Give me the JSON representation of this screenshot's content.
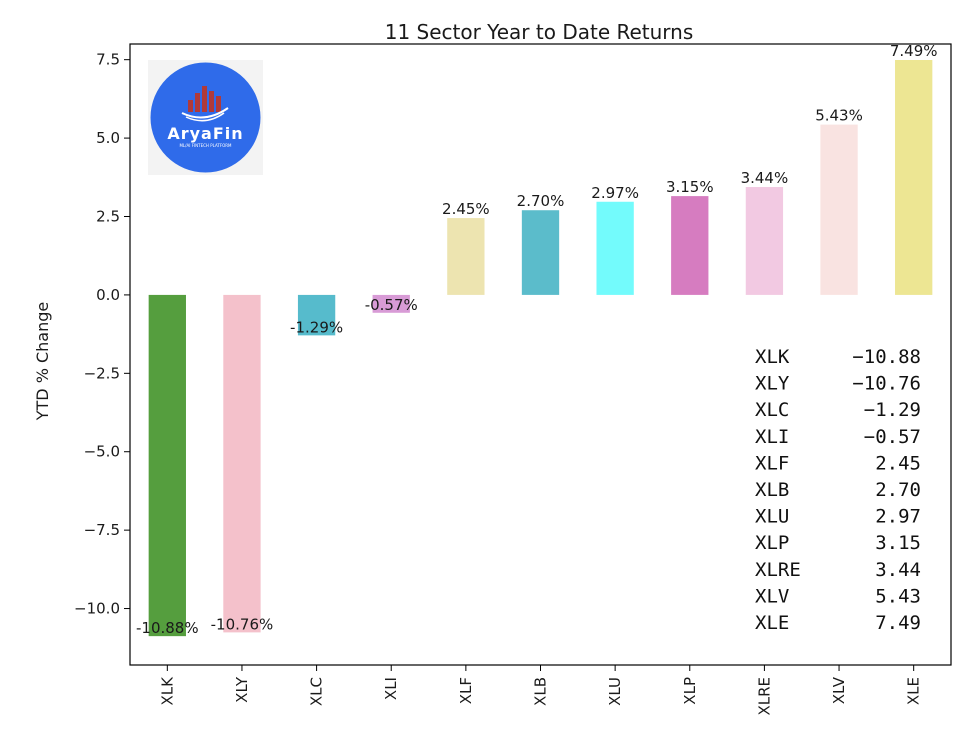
{
  "chart_data": {
    "type": "bar",
    "title": "11 Sector Year to Date Returns",
    "xlabel": "",
    "ylabel": "YTD % Change",
    "ylim": [
      -11.8,
      8.0
    ],
    "yticks": [
      7.5,
      5.0,
      2.5,
      0.0,
      -2.5,
      -5.0,
      -7.5,
      -10.0
    ],
    "ytick_labels": [
      "7.5",
      "5.0",
      "2.5",
      "0.0",
      "−2.5",
      "−5.0",
      "−7.5",
      "−10.0"
    ],
    "categories": [
      "XLK",
      "XLY",
      "XLC",
      "XLI",
      "XLF",
      "XLB",
      "XLU",
      "XLP",
      "XLRE",
      "XLV",
      "XLE"
    ],
    "values": [
      -10.88,
      -10.76,
      -1.29,
      -0.57,
      2.45,
      2.7,
      2.97,
      3.15,
      3.44,
      5.43,
      7.49
    ],
    "data_labels": [
      "-10.88%",
      "-10.76%",
      "-1.29%",
      "-0.57%",
      "2.45%",
      "2.70%",
      "2.97%",
      "3.15%",
      "3.44%",
      "5.43%",
      "7.49%"
    ],
    "colors": [
      "#559e3e",
      "#f4c1cb",
      "#56bbcc",
      "#d89bd6",
      "#ede4b0",
      "#5bbccb",
      "#73fbfc",
      "#d67cc0",
      "#f2c9e2",
      "#f9e3e1",
      "#ede693"
    ],
    "grid": false,
    "legend": "none"
  },
  "summary_table": {
    "rows": [
      {
        "ticker": "XLK",
        "value": "−10.88"
      },
      {
        "ticker": "XLY",
        "value": "−10.76"
      },
      {
        "ticker": "XLC",
        "value": "−1.29"
      },
      {
        "ticker": "XLI",
        "value": "−0.57"
      },
      {
        "ticker": "XLF",
        "value": "2.45"
      },
      {
        "ticker": "XLB",
        "value": "2.70"
      },
      {
        "ticker": "XLU",
        "value": "2.97"
      },
      {
        "ticker": "XLP",
        "value": "3.15"
      },
      {
        "ticker": "XLRE",
        "value": "3.44"
      },
      {
        "ticker": "XLV",
        "value": "5.43"
      },
      {
        "ticker": "XLE",
        "value": "7.49"
      }
    ]
  },
  "logo": {
    "name": "AryaFin",
    "tagline": "ML/AI FINTECH PLATFORM",
    "circle_color": "#2f6bea",
    "bar_color": "#b03a3a"
  }
}
